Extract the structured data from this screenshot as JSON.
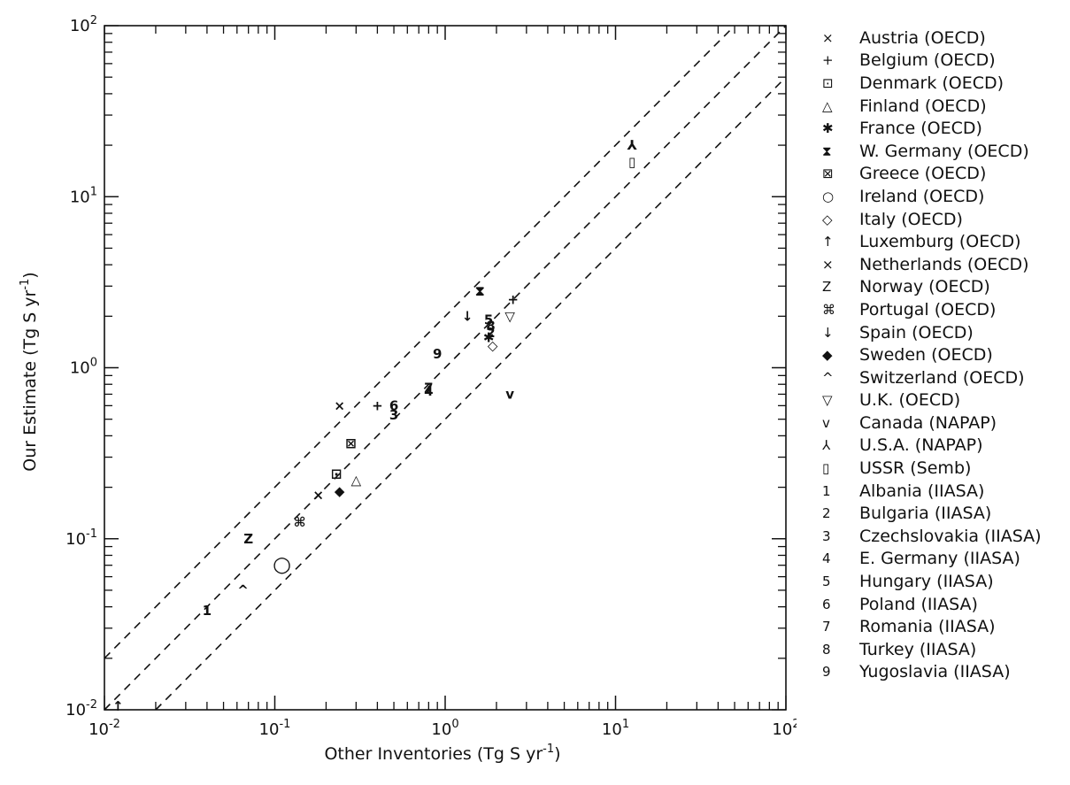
{
  "chart_data": {
    "type": "scatter",
    "xlabel": "Other Inventories  (Tg S yr",
    "xlabel_sup": "-1",
    "xlabel_tail": ")",
    "ylabel": "Our Estimate  (Tg S yr",
    "ylabel_sup": "-1",
    "ylabel_tail": ")",
    "xscale": "log",
    "yscale": "log",
    "xlim": [
      0.01,
      100
    ],
    "ylim": [
      0.01,
      100
    ],
    "x_ticks": [
      {
        "base": "10",
        "exp": "-2"
      },
      {
        "base": "10",
        "exp": "-1"
      },
      {
        "base": "10",
        "exp": "0"
      },
      {
        "base": "10",
        "exp": "1"
      },
      {
        "base": "10",
        "exp": "2"
      }
    ],
    "y_ticks": [
      {
        "base": "10",
        "exp": "-2"
      },
      {
        "base": "10",
        "exp": "-1"
      },
      {
        "base": "10",
        "exp": "0"
      },
      {
        "base": "10",
        "exp": "1"
      },
      {
        "base": "10",
        "exp": "2"
      }
    ],
    "reference_lines": [
      {
        "style": "dashed",
        "factor": 0.5
      },
      {
        "style": "dashed",
        "factor": 1
      },
      {
        "style": "dashed",
        "factor": 2
      }
    ],
    "legend_position": "right, outside",
    "series": [
      {
        "name": "Austria (OECD)",
        "symbol": "×",
        "points": [
          [
            0.18,
            0.18
          ]
        ]
      },
      {
        "name": "Belgium (OECD)",
        "symbol": "+",
        "points": [
          [
            0.4,
            0.6
          ],
          [
            2.5,
            2.5
          ]
        ]
      },
      {
        "name": "Denmark (OECD)",
        "symbol": "⊡",
        "points": [
          [
            0.23,
            0.24
          ]
        ]
      },
      {
        "name": "Finland (OECD)",
        "symbol": "△",
        "points": [
          [
            0.3,
            0.22
          ]
        ]
      },
      {
        "name": "France (OECD)",
        "symbol": "✱",
        "points": [
          [
            1.8,
            1.5
          ]
        ]
      },
      {
        "name": "W. Germany (OECD)",
        "symbol": "⧗",
        "points": [
          [
            1.6,
            2.8
          ]
        ]
      },
      {
        "name": "Greece (OECD)",
        "symbol": "⊠",
        "points": [
          [
            0.28,
            0.36
          ]
        ]
      },
      {
        "name": "Ireland (OECD)",
        "symbol": "○",
        "points": [
          [
            0.11,
            0.07
          ]
        ]
      },
      {
        "name": "Italy (OECD)",
        "symbol": "◇",
        "points": [
          [
            1.9,
            1.35
          ]
        ]
      },
      {
        "name": "Luxemburg (OECD)",
        "symbol": "↑",
        "points": [
          [
            0.012,
            0.0105
          ]
        ]
      },
      {
        "name": "Netherlands (OECD)",
        "symbol": "⨯",
        "points": [
          [
            0.24,
            0.6
          ]
        ]
      },
      {
        "name": "Norway (OECD)",
        "symbol": "Z",
        "points": [
          [
            0.07,
            0.1
          ]
        ]
      },
      {
        "name": "Portugal (OECD)",
        "symbol": "⌘",
        "points": [
          [
            0.14,
            0.125
          ]
        ]
      },
      {
        "name": "Spain (OECD)",
        "symbol": "↓",
        "points": [
          [
            1.35,
            2.0
          ]
        ]
      },
      {
        "name": "Sweden (OECD)",
        "symbol": "◆",
        "points": [
          [
            0.24,
            0.19
          ]
        ]
      },
      {
        "name": "Switzerland (OECD)",
        "symbol": "^",
        "points": [
          [
            0.065,
            0.05
          ]
        ]
      },
      {
        "name": "U.K. (OECD)",
        "symbol": "▽",
        "points": [
          [
            2.4,
            2.0
          ]
        ]
      },
      {
        "name": "Canada (NAPAP)",
        "symbol": "v",
        "points": [
          [
            2.4,
            0.7
          ]
        ]
      },
      {
        "name": "U.S.A. (NAPAP)",
        "symbol": "⅄",
        "points": [
          [
            12.5,
            20.0
          ]
        ]
      },
      {
        "name": "USSR (Semb)",
        "symbol": "▯",
        "points": [
          [
            12.5,
            16.0
          ]
        ]
      },
      {
        "name": "Albania (IIASA)",
        "symbol": "1",
        "points": [
          [
            0.04,
            0.038
          ]
        ]
      },
      {
        "name": "Bulgaria (IIASA)",
        "symbol": "2",
        "points": [
          [
            1.85,
            1.6
          ]
        ]
      },
      {
        "name": "Czechslovakia (IIASA)",
        "symbol": "3",
        "points": [
          [
            0.5,
            0.53
          ]
        ]
      },
      {
        "name": "E. Germany (IIASA)",
        "symbol": "4",
        "points": [
          [
            0.8,
            0.73
          ]
        ]
      },
      {
        "name": "Hungary (IIASA)",
        "symbol": "5",
        "points": [
          [
            1.8,
            1.9
          ]
        ]
      },
      {
        "name": "Poland (IIASA)",
        "symbol": "6",
        "points": [
          [
            0.5,
            0.6
          ]
        ]
      },
      {
        "name": "Romania (IIASA)",
        "symbol": "7",
        "points": [
          [
            0.8,
            0.76
          ]
        ]
      },
      {
        "name": "Turkey (IIASA)",
        "symbol": "8",
        "points": [
          [
            1.85,
            1.75
          ]
        ]
      },
      {
        "name": "Yugoslavia (IIASA)",
        "symbol": "9",
        "points": [
          [
            0.9,
            1.2
          ]
        ]
      }
    ]
  }
}
